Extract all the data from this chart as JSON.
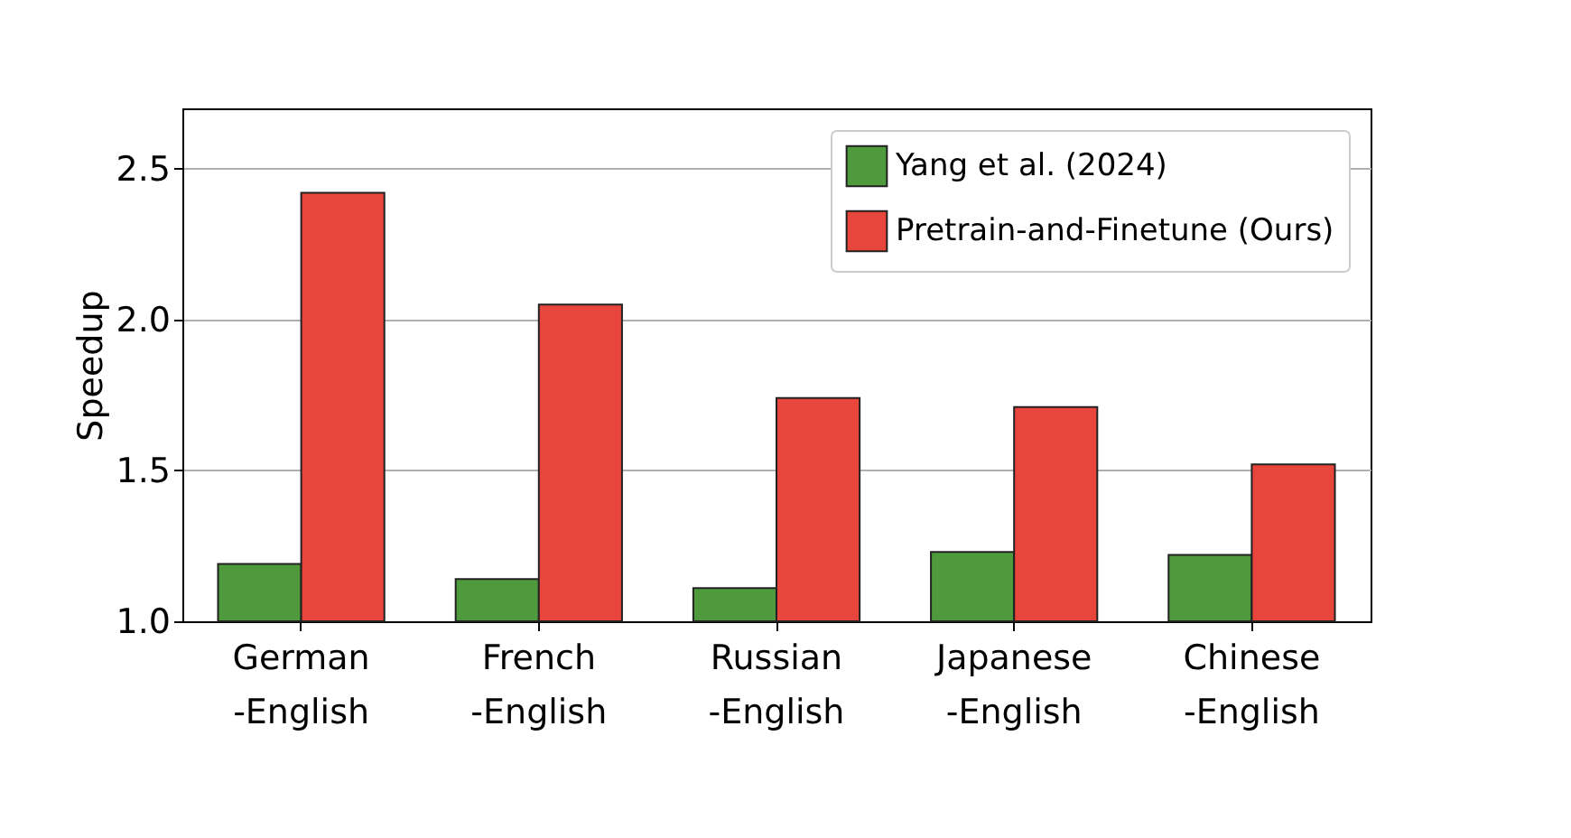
{
  "chart_data": {
    "type": "bar",
    "ylabel": "Speedup",
    "categories": [
      "German\n-English",
      "French\n-English",
      "Russian\n-English",
      "Japanese\n-English",
      "Chinese\n-English"
    ],
    "series": [
      {
        "name": "Yang et al. (2024)",
        "color": "#4e9a3d",
        "values": [
          1.19,
          1.14,
          1.11,
          1.23,
          1.22
        ]
      },
      {
        "name": "Pretrain-and-Finetune (Ours)",
        "color": "#e8453c",
        "values": [
          2.42,
          2.05,
          1.74,
          1.71,
          1.52
        ]
      }
    ],
    "ylim": [
      1.0,
      2.7
    ],
    "yticks": [
      {
        "value": 1.0,
        "label": "1.0"
      },
      1.5,
      {
        "value": 2.0,
        "label": "2.0"
      },
      2.5
    ],
    "grid": "y",
    "legend": "top right"
  }
}
